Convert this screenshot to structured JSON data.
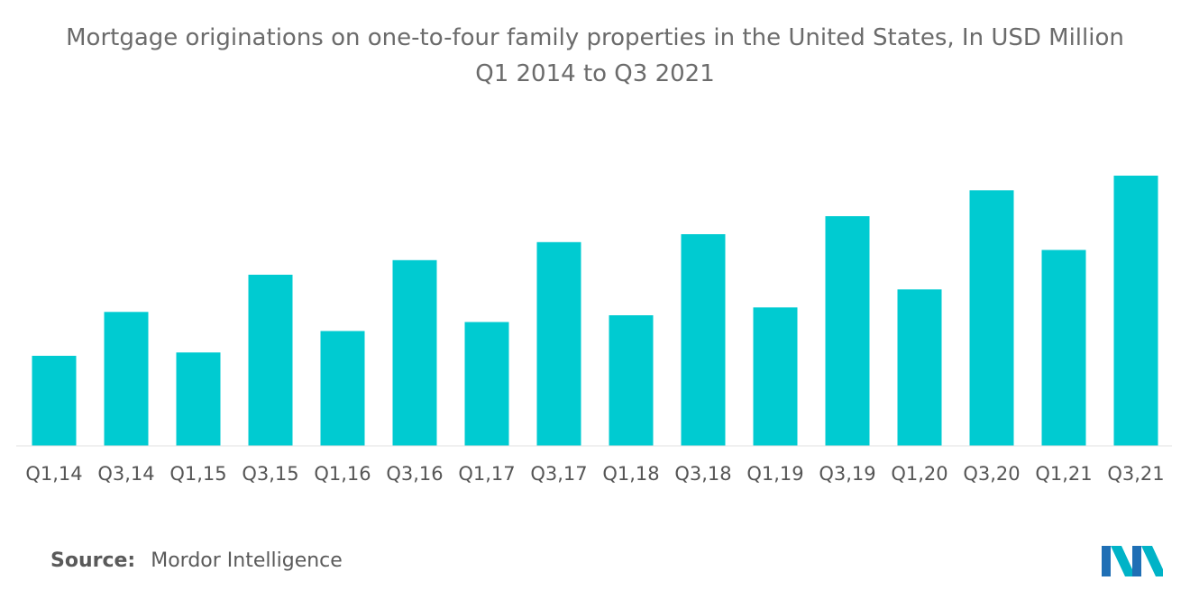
{
  "chart_data": {
    "type": "bar",
    "title": "Mortgage originations on one-to-four family properties in the United States, In USD Million",
    "subtitle": "Q1 2014 to Q3 2021",
    "xlabel": "",
    "ylabel": "",
    "categories": [
      "Q1,14",
      "Q3,14",
      "Q1,15",
      "Q3,15",
      "Q1,16",
      "Q3,16",
      "Q1,17",
      "Q3,17",
      "Q1,18",
      "Q3,18",
      "Q1,19",
      "Q3,19",
      "Q1,20",
      "Q3,20",
      "Q1,21",
      "Q3,21"
    ],
    "values": [
      80,
      119,
      83,
      152,
      102,
      165,
      110,
      181,
      116,
      188,
      123,
      204,
      139,
      227,
      174,
      240
    ],
    "ylim": [
      0,
      280
    ],
    "grid": false,
    "legend": "none",
    "bar_color": "#00cbd1"
  },
  "footer": {
    "source_label": "Source:",
    "source_value": "Mordor Intelligence"
  },
  "logo": {
    "icon": "mordor-intelligence-logo",
    "colors": [
      "#1f6fb5",
      "#00b3c7"
    ]
  }
}
